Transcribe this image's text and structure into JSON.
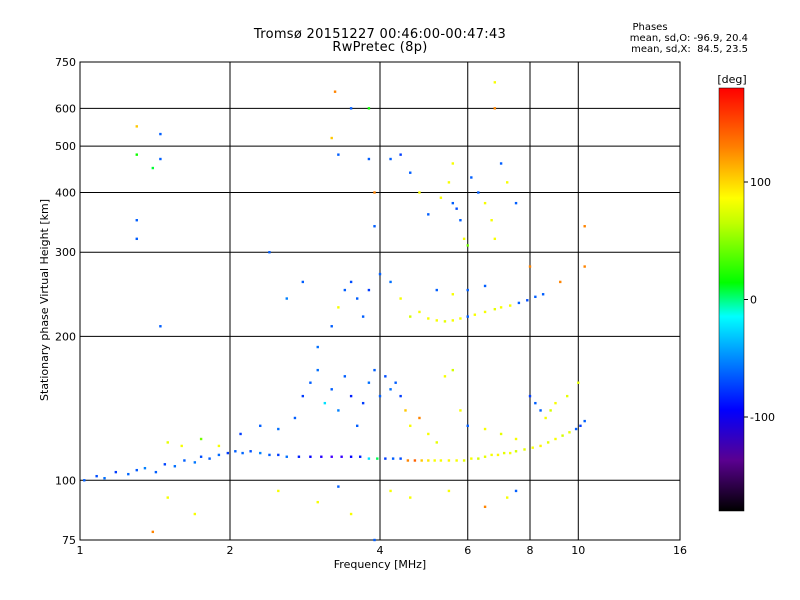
{
  "chart_data": {
    "type": "scatter",
    "title": "Tromsø 20151227 00:46:00-00:47:43",
    "subtitle": "RwPretec (8p)",
    "stats": {
      "header": "Phases",
      "line_o": "mean, sd,O: -96.9, 20.4",
      "line_x": "mean, sd,X:  84.5, 23.5"
    },
    "xlabel": "Frequency [MHz]",
    "ylabel": "Stationary phase Virtual Height [km]",
    "x_scale": "log",
    "y_scale": "log",
    "xlim": [
      1,
      16
    ],
    "ylim": [
      75,
      750
    ],
    "x_ticks": [
      1,
      2,
      4,
      6,
      8,
      10,
      16
    ],
    "x_tick_labels": [
      "1",
      "2",
      "4",
      "6",
      "8",
      "10",
      "16"
    ],
    "y_ticks": [
      75,
      100,
      200,
      300,
      400,
      500,
      600,
      750
    ],
    "y_tick_labels": [
      "75",
      "100",
      "200",
      "300",
      "400",
      "500",
      "600",
      "750"
    ],
    "x_grid": [
      2,
      4,
      6,
      8,
      10
    ],
    "y_grid": [
      100,
      200,
      300,
      400,
      500,
      600
    ],
    "colorbar": {
      "label": "[deg]",
      "range": [
        -180,
        180
      ],
      "ticks": [
        -100,
        0,
        100
      ],
      "tick_labels": [
        "-100",
        "0",
        "100"
      ]
    },
    "series": [
      {
        "points": [
          [
            1.02,
            100,
            -100
          ],
          [
            1.08,
            102,
            -105
          ],
          [
            1.12,
            101,
            -95
          ],
          [
            1.18,
            104,
            -110
          ],
          [
            1.25,
            103,
            -98
          ],
          [
            1.3,
            105,
            -102
          ],
          [
            1.35,
            106,
            -90
          ],
          [
            1.42,
            104,
            -100
          ],
          [
            1.48,
            108,
            -108
          ],
          [
            1.55,
            107,
            -95
          ],
          [
            1.62,
            110,
            -100
          ],
          [
            1.7,
            109,
            -92
          ],
          [
            1.75,
            112,
            -105
          ],
          [
            1.82,
            111,
            -100
          ],
          [
            1.9,
            113,
            -96
          ],
          [
            1.98,
            114,
            -110
          ],
          [
            2.05,
            115,
            -100
          ],
          [
            2.12,
            114,
            -98
          ],
          [
            2.2,
            115,
            -104
          ],
          [
            2.3,
            114,
            -90
          ],
          [
            2.4,
            113,
            -100
          ],
          [
            2.5,
            113,
            -110
          ],
          [
            2.6,
            112,
            -95
          ],
          [
            2.75,
            112,
            -120
          ],
          [
            2.9,
            112,
            -130
          ],
          [
            3.05,
            112,
            -140
          ],
          [
            3.2,
            112,
            -150
          ],
          [
            3.35,
            112,
            -145
          ],
          [
            3.5,
            112,
            -130
          ],
          [
            3.65,
            112,
            -120
          ],
          [
            3.8,
            111,
            -60
          ],
          [
            3.95,
            111,
            0
          ],
          [
            4.1,
            111,
            -110
          ],
          [
            4.25,
            111,
            -100
          ],
          [
            4.4,
            111,
            -105
          ],
          [
            4.55,
            110,
            140
          ],
          [
            4.7,
            110,
            150
          ],
          [
            4.85,
            110,
            120
          ],
          [
            5.0,
            110,
            110
          ],
          [
            5.15,
            110,
            100
          ],
          [
            5.3,
            110,
            100
          ],
          [
            5.5,
            110,
            105
          ],
          [
            5.7,
            110,
            100
          ],
          [
            5.9,
            110,
            95
          ],
          [
            6.1,
            111,
            100
          ],
          [
            6.3,
            111,
            90
          ],
          [
            6.5,
            112,
            95
          ],
          [
            6.7,
            113,
            100
          ],
          [
            6.9,
            113,
            105
          ],
          [
            7.1,
            114,
            95
          ],
          [
            7.3,
            114,
            100
          ],
          [
            7.5,
            115,
            90
          ],
          [
            7.8,
            116,
            95
          ],
          [
            8.1,
            117,
            100
          ],
          [
            8.4,
            118,
            105
          ],
          [
            8.7,
            120,
            95
          ],
          [
            9.0,
            122,
            100
          ],
          [
            9.3,
            124,
            90
          ],
          [
            9.6,
            126,
            95
          ],
          [
            9.9,
            128,
            -100
          ],
          [
            10.1,
            130,
            -110
          ],
          [
            10.3,
            133,
            -100
          ],
          [
            1.5,
            120,
            95
          ],
          [
            1.6,
            118,
            100
          ],
          [
            1.75,
            122,
            60
          ],
          [
            1.9,
            118,
            100
          ],
          [
            2.1,
            125,
            -110
          ],
          [
            2.3,
            130,
            -100
          ],
          [
            2.5,
            128,
            -95
          ],
          [
            2.7,
            135,
            -100
          ],
          [
            2.8,
            150,
            -110
          ],
          [
            2.9,
            160,
            -100
          ],
          [
            3.0,
            170,
            -95
          ],
          [
            3.1,
            145,
            -60
          ],
          [
            3.2,
            155,
            -100
          ],
          [
            3.3,
            140,
            -90
          ],
          [
            3.4,
            165,
            -100
          ],
          [
            3.5,
            150,
            -120
          ],
          [
            3.6,
            130,
            -100
          ],
          [
            3.7,
            145,
            -110
          ],
          [
            3.8,
            160,
            -95
          ],
          [
            3.9,
            170,
            -100
          ],
          [
            4.0,
            150,
            -100
          ],
          [
            4.1,
            165,
            -105
          ],
          [
            4.2,
            155,
            -95
          ],
          [
            4.3,
            160,
            -100
          ],
          [
            4.4,
            150,
            -110
          ],
          [
            4.5,
            140,
            120
          ],
          [
            4.6,
            130,
            100
          ],
          [
            4.8,
            135,
            140
          ],
          [
            5.0,
            125,
            100
          ],
          [
            5.2,
            120,
            95
          ],
          [
            5.4,
            165,
            100
          ],
          [
            5.6,
            170,
            90
          ],
          [
            5.8,
            140,
            100
          ],
          [
            6.0,
            130,
            -100
          ],
          [
            6.5,
            128,
            100
          ],
          [
            7.0,
            125,
            95
          ],
          [
            7.5,
            122,
            100
          ],
          [
            8.0,
            150,
            -110
          ],
          [
            8.2,
            145,
            -100
          ],
          [
            8.4,
            140,
            -100
          ],
          [
            8.6,
            135,
            100
          ],
          [
            8.8,
            140,
            90
          ],
          [
            9.0,
            145,
            100
          ],
          [
            9.5,
            150,
            95
          ],
          [
            10.0,
            160,
            95
          ],
          [
            2.4,
            300,
            -100
          ],
          [
            2.6,
            240,
            -90
          ],
          [
            2.8,
            260,
            -100
          ],
          [
            3.0,
            190,
            -95
          ],
          [
            3.2,
            210,
            -100
          ],
          [
            3.3,
            230,
            100
          ],
          [
            3.4,
            250,
            -100
          ],
          [
            3.5,
            260,
            -105
          ],
          [
            3.6,
            240,
            -100
          ],
          [
            3.7,
            220,
            -100
          ],
          [
            3.8,
            250,
            -110
          ],
          [
            4.0,
            270,
            -100
          ],
          [
            4.2,
            260,
            -95
          ],
          [
            4.4,
            240,
            100
          ],
          [
            4.6,
            220,
            90
          ],
          [
            4.8,
            225,
            100
          ],
          [
            5.0,
            218,
            100
          ],
          [
            5.2,
            216,
            100
          ],
          [
            5.4,
            215,
            95
          ],
          [
            5.6,
            216,
            100
          ],
          [
            5.8,
            218,
            100
          ],
          [
            6.0,
            220,
            -100
          ],
          [
            6.2,
            222,
            100
          ],
          [
            6.5,
            225,
            100
          ],
          [
            6.8,
            228,
            95
          ],
          [
            7.0,
            230,
            100
          ],
          [
            7.3,
            232,
            100
          ],
          [
            7.6,
            235,
            -100
          ],
          [
            7.9,
            238,
            -105
          ],
          [
            8.2,
            242,
            -100
          ],
          [
            8.5,
            245,
            -100
          ],
          [
            5.2,
            250,
            -100
          ],
          [
            5.6,
            245,
            100
          ],
          [
            6.0,
            250,
            -100
          ],
          [
            6.5,
            255,
            -100
          ],
          [
            4.2,
            470,
            -100
          ],
          [
            4.4,
            480,
            -110
          ],
          [
            4.6,
            440,
            -100
          ],
          [
            4.8,
            400,
            100
          ],
          [
            5.0,
            360,
            -100
          ],
          [
            5.3,
            390,
            100
          ],
          [
            5.5,
            420,
            100
          ],
          [
            5.6,
            380,
            -100
          ],
          [
            5.7,
            370,
            -105
          ],
          [
            5.8,
            350,
            -100
          ],
          [
            5.9,
            320,
            100
          ],
          [
            6.0,
            310,
            60
          ],
          [
            6.3,
            400,
            -100
          ],
          [
            6.5,
            380,
            100
          ],
          [
            6.7,
            350,
            100
          ],
          [
            6.8,
            320,
            100
          ],
          [
            7.0,
            460,
            -100
          ],
          [
            7.2,
            420,
            100
          ],
          [
            7.5,
            380,
            -100
          ],
          [
            6.1,
            430,
            -100
          ],
          [
            5.6,
            460,
            100
          ],
          [
            1.3,
            550,
            120
          ],
          [
            1.3,
            480,
            30
          ],
          [
            1.4,
            450,
            10
          ],
          [
            1.45,
            470,
            -100
          ],
          [
            1.3,
            350,
            -100
          ],
          [
            1.3,
            320,
            -100
          ],
          [
            1.45,
            530,
            -100
          ],
          [
            1.45,
            210,
            -100
          ],
          [
            3.2,
            520,
            120
          ],
          [
            3.3,
            480,
            -100
          ],
          [
            3.25,
            650,
            140
          ],
          [
            3.5,
            600,
            -100
          ],
          [
            3.8,
            600,
            30
          ],
          [
            3.8,
            470,
            -100
          ],
          [
            3.9,
            340,
            -100
          ],
          [
            3.9,
            400,
            140
          ],
          [
            6.8,
            680,
            100
          ],
          [
            6.8,
            600,
            140
          ],
          [
            10.3,
            340,
            140
          ],
          [
            10.3,
            280,
            140
          ],
          [
            8.0,
            280,
            140
          ],
          [
            9.2,
            260,
            140
          ],
          [
            2.5,
            95,
            100
          ],
          [
            3.0,
            90,
            100
          ],
          [
            3.3,
            97,
            -100
          ],
          [
            3.5,
            85,
            100
          ],
          [
            3.9,
            75,
            -100
          ],
          [
            4.2,
            95,
            100
          ],
          [
            4.6,
            92,
            100
          ],
          [
            5.5,
            95,
            100
          ],
          [
            6.5,
            88,
            140
          ],
          [
            7.2,
            92,
            100
          ],
          [
            7.5,
            95,
            -100
          ],
          [
            1.5,
            92,
            100
          ],
          [
            1.7,
            85,
            100
          ],
          [
            1.4,
            78,
            140
          ]
        ]
      }
    ]
  }
}
